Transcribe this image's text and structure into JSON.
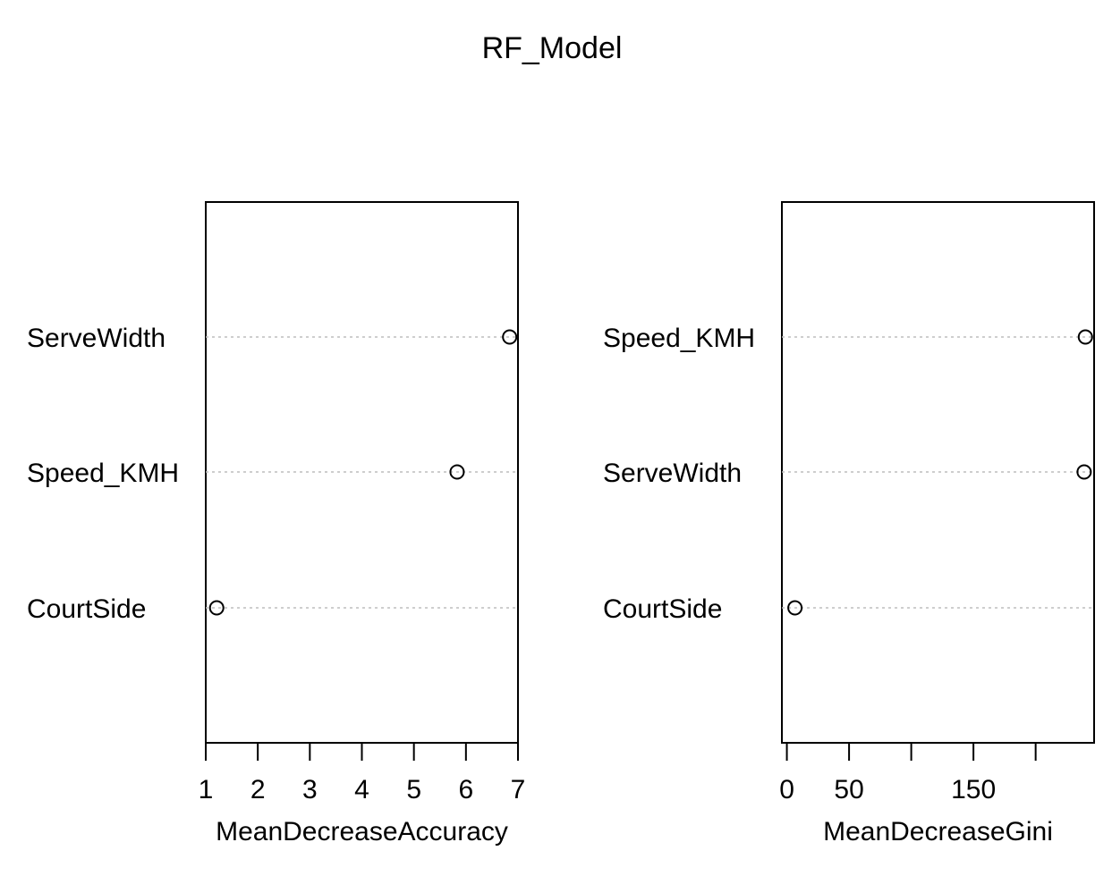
{
  "chart_data": [
    {
      "type": "scatter",
      "title": "RF_Model",
      "xlabel": "MeanDecreaseAccuracy",
      "ylabel": "",
      "xlim": [
        1,
        7
      ],
      "xticks": [
        1,
        2,
        3,
        4,
        5,
        6,
        7
      ],
      "categories": [
        "ServeWidth",
        "Speed_KMH",
        "CourtSide"
      ],
      "values": [
        6.84,
        5.83,
        1.21
      ],
      "grid": "dotted horizontal guide lines"
    },
    {
      "type": "scatter",
      "xlabel": "MeanDecreaseGini",
      "ylabel": "",
      "xlim": [
        -4,
        247
      ],
      "xticks": [
        0,
        50,
        100,
        150,
        200
      ],
      "xticklabels": [
        "0",
        "50",
        "",
        "150",
        ""
      ],
      "categories": [
        "Speed_KMH",
        "ServeWidth",
        "CourtSide"
      ],
      "values": [
        240,
        239,
        6.5
      ],
      "grid": "dotted horizontal guide lines"
    }
  ],
  "colors": {
    "axis": "#000000",
    "guide": "#bebebe",
    "point": "#000000",
    "background": "#ffffff"
  }
}
